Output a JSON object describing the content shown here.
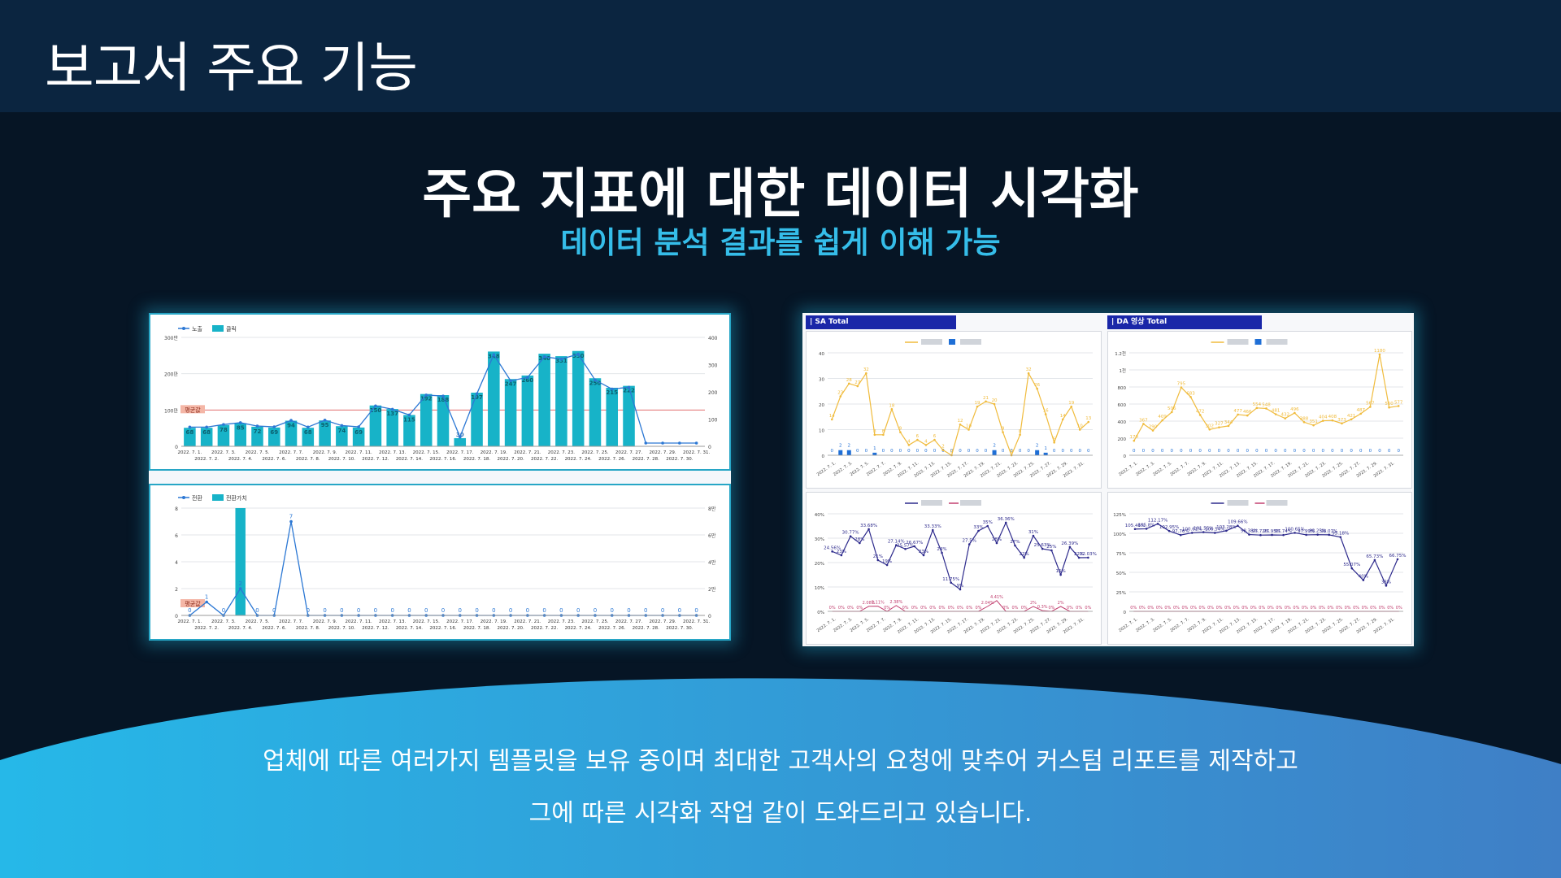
{
  "header": {
    "title": "보고서 주요 기능"
  },
  "main": {
    "title": "주요 지표에 대한 데이터 시각화",
    "subtitle": "데이터 분석 결과를 쉽게 이해 가능"
  },
  "left_report": {
    "dates_top": [
      "2022. 7. 1.",
      "2022. 7. 3.",
      "2022. 7. 5.",
      "2022. 7. 7.",
      "2022. 7. 9.",
      "2022. 7. 11.",
      "2022. 7. 13.",
      "2022. 7. 15.",
      "2022. 7. 17.",
      "2022. 7. 19.",
      "2022. 7. 21.",
      "2022. 7. 23.",
      "2022. 7. 25.",
      "2022. 7. 27.",
      "2022. 7. 29.",
      "2022. 7. 31."
    ],
    "dates_bottom": [
      "2022. 7. 2.",
      "2022. 7. 4.",
      "2022. 7. 6.",
      "2022. 7. 8.",
      "2022. 7. 10.",
      "2022. 7. 12.",
      "2022. 7. 14.",
      "2022. 7. 16.",
      "2022. 7. 18.",
      "2022. 7. 20.",
      "2022. 7. 22.",
      "2022. 7. 24.",
      "2022. 7. 26.",
      "2022. 7. 28.",
      "2022. 7. 30."
    ],
    "avg_label": "평균값"
  },
  "right_report": {
    "sa_title": "| SA Total",
    "da_title": "| DA 영상 Total"
  },
  "footer": {
    "line1": "업체에 따른 여러가지 템플릿을 보유 중이며 최대한 고객사의 요청에 맞추어 커스텀 리포트를 제작하고",
    "line2": "그에 따른 시각화 작업 같이 도와드리고 있습니다."
  },
  "colors": {
    "header_bg": "#0b2540",
    "page_bg": "#061525",
    "accent": "#35bde9",
    "bar": "#17b3c8",
    "line_blue": "#2c78d4",
    "line_gold": "#f0bb3c",
    "line_purple": "#2d2a8c",
    "line_red": "#c24070"
  },
  "chart_data": [
    {
      "type": "bar",
      "legend": [
        "노출",
        "클릭"
      ],
      "categories": [
        "7.1",
        "7.2",
        "7.3",
        "7.4",
        "7.5",
        "7.6",
        "7.7",
        "7.8",
        "7.9",
        "7.10",
        "7.11",
        "7.12",
        "7.13",
        "7.14",
        "7.15",
        "7.16",
        "7.17",
        "7.18",
        "7.19",
        "7.20",
        "7.21",
        "7.22",
        "7.23",
        "7.24",
        "7.25",
        "7.26",
        "7.27",
        "7.28",
        "7.29",
        "7.30",
        "7.31"
      ],
      "series": [
        {
          "name": "클릭",
          "values": [
            68,
            68,
            78,
            85,
            72,
            69,
            94,
            68,
            95,
            74,
            69,
            150,
            137,
            115,
            192,
            188,
            30,
            197,
            348,
            247,
            260,
            340,
            331,
            350,
            250,
            215,
            222,
            0,
            0,
            0,
            0
          ]
        }
      ],
      "ylim_left": [
        0,
        300
      ],
      "left_ticks": [
        "0",
        "100만",
        "200만",
        "300만"
      ],
      "right_ticks": [
        "0",
        "100",
        "200",
        "300",
        "400"
      ],
      "avg": 100
    },
    {
      "type": "bar",
      "legend": [
        "전환",
        "전환가치"
      ],
      "categories": [
        "7.1",
        "7.2",
        "7.3",
        "7.4",
        "7.5",
        "7.6",
        "7.7",
        "7.8",
        "7.9",
        "7.10",
        "7.11",
        "7.12",
        "7.13",
        "7.14",
        "7.15",
        "7.16",
        "7.17",
        "7.18",
        "7.19",
        "7.20",
        "7.21",
        "7.22",
        "7.23",
        "7.24",
        "7.25",
        "7.26",
        "7.27",
        "7.28",
        "7.29",
        "7.30",
        "7.31"
      ],
      "series": [
        {
          "name": "전환",
          "values": [
            0,
            1,
            0,
            2,
            0,
            0,
            7,
            0,
            0,
            0,
            0,
            0,
            0,
            0,
            0,
            0,
            0,
            0,
            0,
            0,
            0,
            0,
            0,
            0,
            0,
            0,
            0,
            0,
            0,
            0,
            0
          ]
        },
        {
          "name": "전환가치",
          "values": [
            0,
            0,
            0,
            8,
            0,
            0,
            0,
            0,
            0,
            0,
            0,
            0,
            0,
            0,
            0,
            0,
            0,
            0,
            0,
            0,
            0,
            0,
            0,
            0,
            0,
            0,
            0,
            0,
            0,
            0,
            0
          ]
        }
      ],
      "left_ticks": [
        "0",
        "2",
        "4",
        "6",
        "8"
      ],
      "right_ticks": [
        "0",
        "2만",
        "4만",
        "6만",
        "8만"
      ]
    },
    {
      "type": "line",
      "title": "| SA Total",
      "left_ticks": [
        "0",
        "10",
        "20",
        "30",
        "40"
      ],
      "series": [
        {
          "values": [
            14,
            23,
            28,
            27,
            32,
            8,
            8,
            18,
            9,
            4,
            6,
            4,
            6,
            2,
            0,
            12,
            10,
            19,
            21,
            20,
            9,
            0,
            8,
            32,
            26,
            16,
            5,
            14,
            19,
            10,
            13
          ]
        },
        {
          "values": [
            0,
            2,
            2,
            0,
            0,
            1,
            0,
            0,
            0,
            0,
            0,
            0,
            0,
            0,
            0,
            0,
            0,
            0,
            0,
            2,
            0,
            0,
            0,
            0,
            2,
            1,
            0,
            0,
            0,
            0,
            0
          ]
        }
      ]
    },
    {
      "type": "line",
      "title": "| DA 영상 Total",
      "left_ticks": [
        "0",
        "200",
        "400",
        "600",
        "800",
        "1천",
        "1.2천"
      ],
      "series": [
        {
          "values": [
            170,
            367,
            290,
            409,
            506,
            795,
            683,
            472,
            302,
            327,
            344,
            477,
            466,
            554,
            548,
            481,
            432,
            496,
            388,
            351,
            404,
            408,
            373,
            421,
            487,
            567,
            1180,
            560,
            577
          ]
        },
        {
          "values": [
            0,
            0,
            0,
            0,
            0,
            0,
            0,
            0,
            0,
            0,
            0,
            0,
            0,
            0,
            0,
            0,
            0,
            0,
            0,
            0,
            0,
            0,
            0,
            0,
            0,
            0,
            0,
            0,
            0
          ]
        }
      ]
    },
    {
      "type": "line",
      "left_ticks": [
        "0%",
        "10%",
        "20%",
        "30%",
        "40%"
      ],
      "series": [
        {
          "values": [
            24.56,
            23,
            30.77,
            28,
            33.68,
            21,
            19,
            27.14,
            25.57,
            26.67,
            23,
            33.33,
            24,
            11.75,
            9,
            27.5,
            33,
            35,
            28,
            36.36,
            27,
            22,
            31,
            25.63,
            25,
            15,
            26.39,
            22,
            22.03
          ]
        },
        {
          "values": [
            0,
            0,
            0,
            0,
            2.08,
            2.11,
            0,
            2.38,
            0,
            0,
            0,
            0,
            0,
            0,
            0,
            0,
            0,
            2.04,
            4.41,
            0,
            0,
            0,
            2,
            0.3,
            0,
            2,
            0,
            0,
            0
          ]
        }
      ]
    },
    {
      "type": "line",
      "left_ticks": [
        "0",
        "25%",
        "50%",
        "75%",
        "100%",
        "125%"
      ],
      "series": [
        {
          "values": [
            105.46,
            105.8,
            112.17,
            102.95,
            97.76,
            100.61,
            101.55,
            100.54,
            103.28,
            109.66,
            98.38,
            97.72,
            97.95,
            97.74,
            100.65,
            97.99,
            98.25,
            98.07,
            95.18,
            55.07,
            40,
            65.73,
            33,
            66.75
          ]
        },
        {
          "values": [
            0,
            0,
            0,
            0,
            0,
            0,
            0,
            0,
            0,
            0,
            0,
            0,
            0,
            0,
            0,
            0,
            0,
            0,
            0,
            0,
            0,
            0,
            0,
            0,
            0,
            0,
            0,
            0,
            0,
            0,
            0,
            0
          ]
        }
      ]
    }
  ]
}
